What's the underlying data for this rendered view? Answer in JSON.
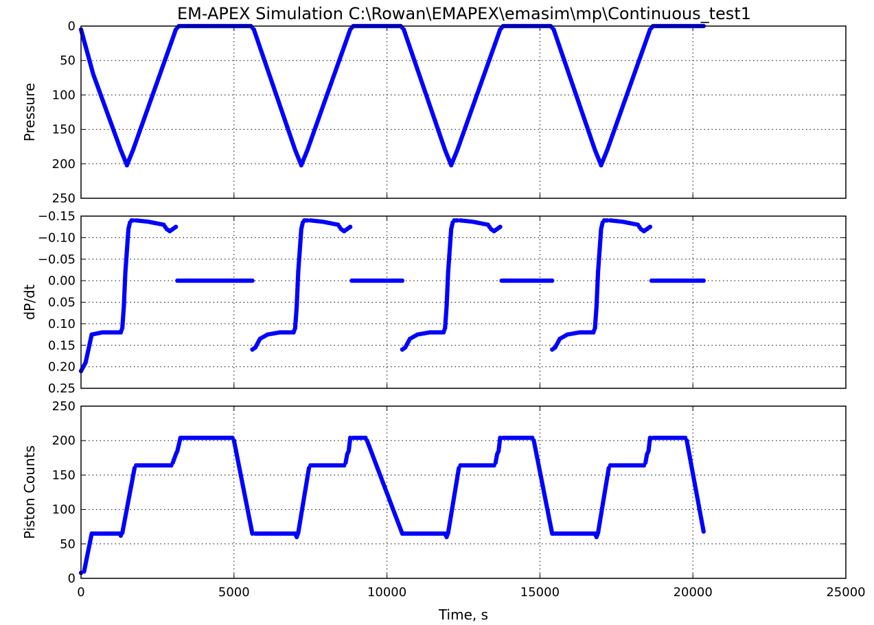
{
  "title": "EM-APEX Simulation C:\\Rowan\\EMAPEX\\emasim\\mp\\Continuous_test1",
  "colors": {
    "marker": "#0000ff",
    "axes": "#000000",
    "background": "#ffffff"
  },
  "chart_data": [
    {
      "type": "scatter",
      "ylabel": "Pressure",
      "xlim": [
        0,
        25000
      ],
      "ylim": [
        250,
        0
      ],
      "y_inverted": true,
      "grid": true,
      "x_ticks_labeled": false,
      "yticks": [
        0,
        50,
        100,
        150,
        200,
        250
      ],
      "ytick_labels": [
        "0",
        "50",
        "100",
        "150",
        "200",
        "250"
      ],
      "series": [
        {
          "x": [
            0,
            400,
            1300,
            1500,
            1700,
            3100,
            3200,
            5550,
            5650,
            7000,
            7200,
            7400,
            8800,
            8900,
            10450,
            10550,
            11900,
            12100,
            12300,
            13700,
            13800,
            15350,
            15450,
            16800,
            17000,
            17200,
            18600,
            18700,
            20350
          ],
          "y": [
            5,
            70,
            180,
            202,
            180,
            5,
            0,
            0,
            5,
            180,
            202,
            180,
            5,
            0,
            0,
            5,
            180,
            202,
            180,
            5,
            0,
            0,
            5,
            180,
            202,
            180,
            5,
            0,
            0
          ]
        }
      ]
    },
    {
      "type": "scatter",
      "ylabel": "dP/dt",
      "xlim": [
        0,
        25000
      ],
      "ylim": [
        0.25,
        -0.15
      ],
      "y_inverted": true,
      "grid": true,
      "x_ticks_labeled": false,
      "yticks": [
        -0.15,
        -0.1,
        -0.05,
        0.0,
        0.05,
        0.1,
        0.15,
        0.2,
        0.25
      ],
      "ytick_labels": [
        "−0.15",
        "−0.10",
        "−0.05",
        "0.00",
        "0.05",
        "0.10",
        "0.15",
        "0.20",
        "0.25"
      ],
      "series": [
        {
          "x": [
            0,
            150,
            350,
            700,
            1300,
            1350,
            1400,
            1450,
            1500,
            1550,
            1600,
            1650,
            1700,
            1800,
            2200,
            2700,
            2800,
            2900,
            3000,
            3100
          ],
          "y": [
            0.21,
            0.19,
            0.125,
            0.12,
            0.12,
            0.11,
            0.06,
            -0.02,
            -0.07,
            -0.12,
            -0.135,
            -0.14,
            -0.14,
            -0.14,
            -0.137,
            -0.13,
            -0.12,
            -0.115,
            -0.12,
            -0.125
          ]
        },
        {
          "x": [
            3150,
            5600
          ],
          "y": [
            0.0,
            0.0
          ]
        },
        {
          "x": [
            5600,
            5700,
            5850,
            6100,
            6500,
            6950,
            7000,
            7050,
            7100,
            7150,
            7200,
            7250,
            7300,
            7350,
            7400,
            7500,
            7900,
            8400,
            8500,
            8600,
            8700,
            8800
          ],
          "y": [
            0.16,
            0.155,
            0.135,
            0.125,
            0.12,
            0.12,
            0.11,
            0.06,
            -0.02,
            -0.07,
            -0.12,
            -0.135,
            -0.14,
            -0.14,
            -0.14,
            -0.14,
            -0.137,
            -0.13,
            -0.12,
            -0.115,
            -0.12,
            -0.125
          ]
        },
        {
          "x": [
            8850,
            10500
          ],
          "y": [
            0.0,
            0.0
          ]
        },
        {
          "x": [
            10500,
            10600,
            10750,
            11000,
            11400,
            11850,
            11900,
            11950,
            12000,
            12050,
            12100,
            12150,
            12200,
            12250,
            12300,
            12400,
            12800,
            13300,
            13400,
            13500,
            13600,
            13700
          ],
          "y": [
            0.16,
            0.155,
            0.135,
            0.125,
            0.12,
            0.12,
            0.11,
            0.06,
            -0.02,
            -0.07,
            -0.12,
            -0.135,
            -0.14,
            -0.14,
            -0.14,
            -0.14,
            -0.137,
            -0.13,
            -0.12,
            -0.115,
            -0.12,
            -0.125
          ]
        },
        {
          "x": [
            13750,
            15400
          ],
          "y": [
            0.0,
            0.0
          ]
        },
        {
          "x": [
            15400,
            15500,
            15650,
            15900,
            16300,
            16750,
            16800,
            16850,
            16900,
            16950,
            17000,
            17050,
            17100,
            17150,
            17200,
            17300,
            17700,
            18200,
            18300,
            18400,
            18500,
            18600
          ],
          "y": [
            0.16,
            0.155,
            0.135,
            0.125,
            0.12,
            0.12,
            0.11,
            0.06,
            -0.02,
            -0.07,
            -0.12,
            -0.135,
            -0.14,
            -0.14,
            -0.14,
            -0.14,
            -0.137,
            -0.13,
            -0.12,
            -0.115,
            -0.12,
            -0.125
          ]
        },
        {
          "x": [
            18650,
            20350
          ],
          "y": [
            0.0,
            0.0
          ]
        }
      ]
    },
    {
      "type": "scatter",
      "ylabel": "Piston Counts",
      "xlabel": "Time, s",
      "xlim": [
        0,
        25000
      ],
      "ylim": [
        0,
        250
      ],
      "y_inverted": false,
      "grid": true,
      "xticks": [
        0,
        5000,
        10000,
        15000,
        20000,
        25000
      ],
      "xtick_labels": [
        "0",
        "5000",
        "10000",
        "15000",
        "20000",
        "25000"
      ],
      "yticks": [
        0,
        50,
        100,
        150,
        200,
        250
      ],
      "ytick_labels": [
        "0",
        "50",
        "100",
        "150",
        "200",
        "250"
      ],
      "series": [
        {
          "x": [
            0,
            100,
            350,
            1250,
            1300,
            1350,
            1750,
            1800,
            2950,
            3000,
            3100,
            3150,
            3250,
            4950,
            5000,
            5600,
            5700,
            7000,
            7050,
            7100,
            7450,
            7500,
            8600,
            8650,
            8700,
            8750,
            8800,
            8900,
            9300,
            9350,
            10500,
            10550,
            11900,
            11950,
            12000,
            12350,
            12400,
            13500,
            13550,
            13600,
            13650,
            13700,
            13800,
            14750,
            14800,
            15400,
            15450,
            16800,
            16850,
            16900,
            17250,
            17300,
            18400,
            18450,
            18500,
            18550,
            18600,
            18700,
            19750,
            19800,
            20350
          ],
          "y": [
            8,
            10,
            65,
            65,
            62,
            66,
            160,
            164,
            164,
            168,
            180,
            185,
            204,
            204,
            200,
            65,
            65,
            65,
            60,
            66,
            160,
            164,
            164,
            168,
            180,
            185,
            204,
            204,
            204,
            200,
            65,
            65,
            65,
            60,
            66,
            160,
            164,
            164,
            168,
            180,
            185,
            204,
            204,
            204,
            200,
            65,
            65,
            65,
            60,
            66,
            160,
            164,
            164,
            168,
            180,
            185,
            204,
            204,
            204,
            200,
            68
          ]
        }
      ]
    }
  ]
}
